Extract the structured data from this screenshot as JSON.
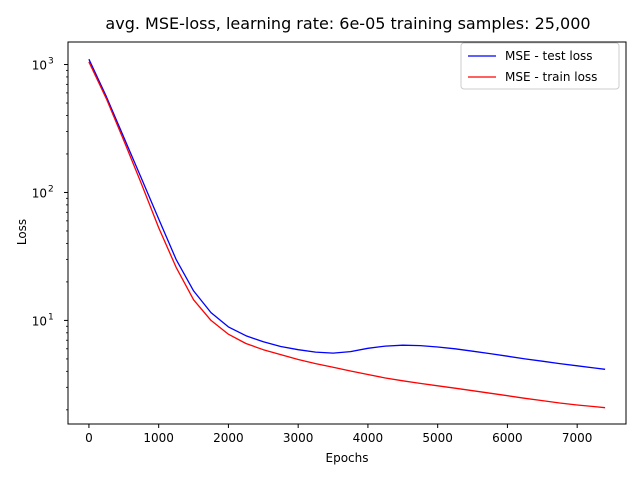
{
  "chart_data": {
    "type": "line",
    "title": "avg. MSE-loss, learning rate: 6e-05 training samples: 25,000",
    "xlabel": "Epochs",
    "ylabel": "Loss",
    "xlim": [
      -300,
      7700
    ],
    "ylim": [
      1.55,
      1500
    ],
    "yscale": "log",
    "grid": false,
    "legend_loc": "upper right",
    "x_ticks": [
      0,
      1000,
      2000,
      3000,
      4000,
      5000,
      6000,
      7000
    ],
    "x_tick_labels": [
      "0",
      "1000",
      "2000",
      "3000",
      "4000",
      "5000",
      "6000",
      "7000"
    ],
    "y_ticks": [
      10,
      100,
      1000
    ],
    "y_tick_labels": [
      "10",
      "10",
      "10"
    ],
    "y_tick_exponents": [
      "1",
      "2",
      "3"
    ],
    "series": [
      {
        "name": "MSE - test loss",
        "color": "#0000ff",
        "x": [
          0,
          250,
          500,
          750,
          1000,
          1250,
          1500,
          1750,
          2000,
          2250,
          2500,
          2750,
          3000,
          3250,
          3500,
          3750,
          4000,
          4250,
          4500,
          4750,
          5000,
          5250,
          5500,
          5750,
          6000,
          6250,
          6500,
          6750,
          7000,
          7250,
          7400
        ],
        "values": [
          1100,
          560,
          270,
          130,
          62,
          30,
          17,
          11.5,
          8.9,
          7.6,
          6.8,
          6.25,
          5.9,
          5.65,
          5.55,
          5.7,
          6.05,
          6.3,
          6.4,
          6.35,
          6.2,
          6.0,
          5.75,
          5.5,
          5.25,
          5.0,
          4.8,
          4.6,
          4.42,
          4.25,
          4.15
        ]
      },
      {
        "name": "MSE - train loss",
        "color": "#ff0000",
        "x": [
          0,
          250,
          500,
          750,
          1000,
          1250,
          1500,
          1750,
          2000,
          2250,
          2500,
          2750,
          3000,
          3250,
          3500,
          3750,
          4000,
          4250,
          4500,
          4750,
          5000,
          5250,
          5500,
          5750,
          6000,
          6250,
          6500,
          6750,
          7000,
          7250,
          7400
        ],
        "values": [
          1050,
          540,
          255,
          118,
          53,
          26,
          14.5,
          10.0,
          7.8,
          6.6,
          5.9,
          5.4,
          4.95,
          4.6,
          4.3,
          4.02,
          3.78,
          3.55,
          3.37,
          3.22,
          3.08,
          2.95,
          2.82,
          2.7,
          2.58,
          2.46,
          2.36,
          2.26,
          2.18,
          2.12,
          2.08
        ]
      }
    ]
  }
}
